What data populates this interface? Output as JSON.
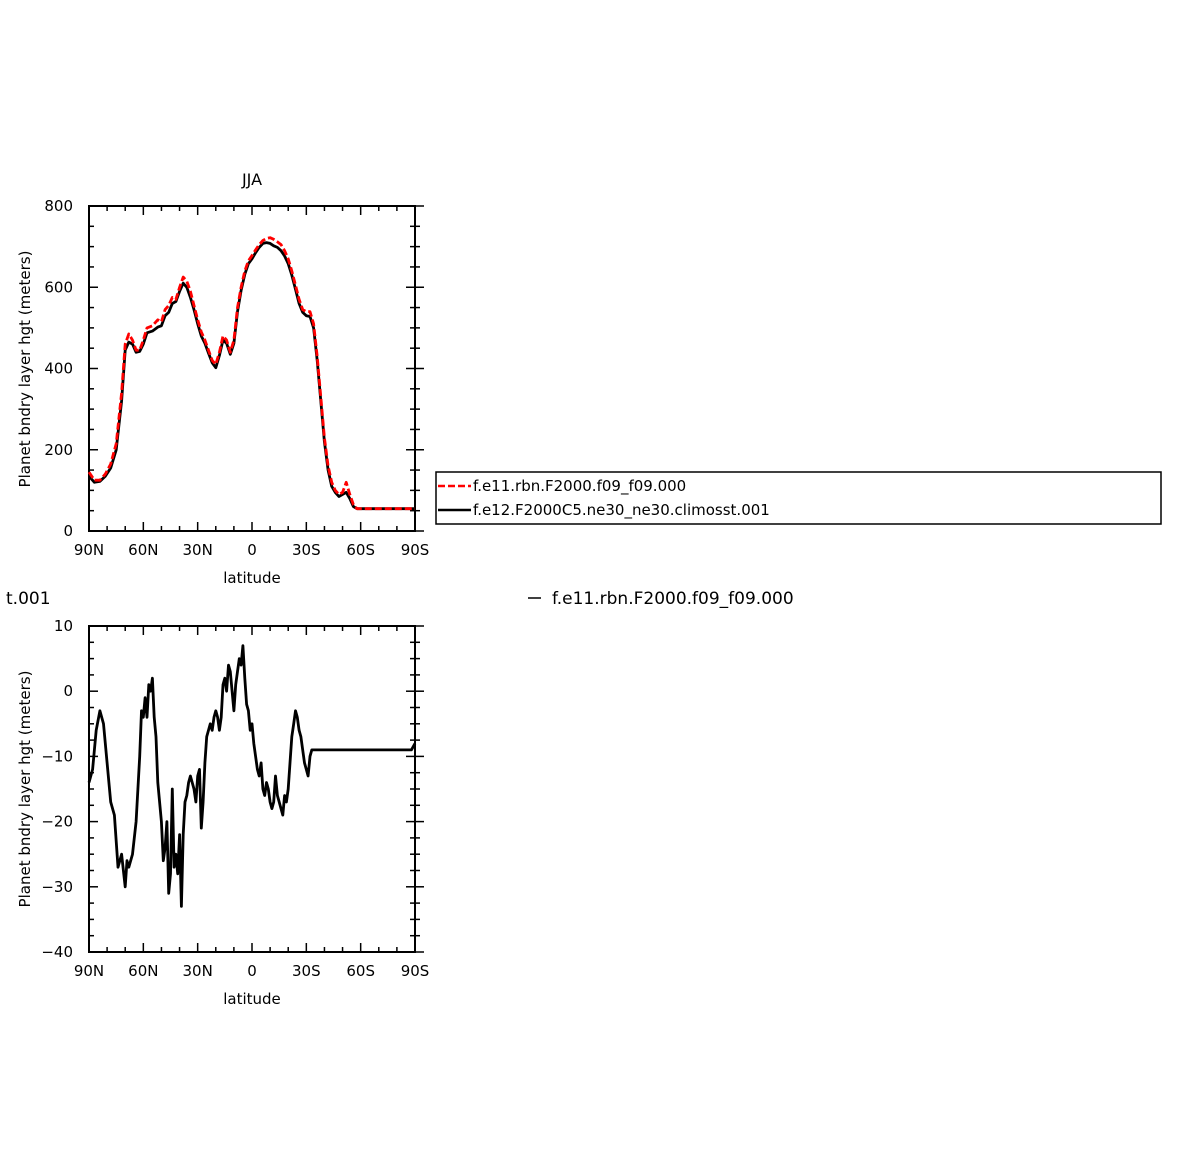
{
  "chart_data": [
    {
      "type": "line",
      "title": "JJA",
      "xlabel": "latitude",
      "ylabel": "Planet bndry layer hgt (meters)",
      "xlim": [
        -90,
        90
      ],
      "ylim": [
        0,
        800
      ],
      "x_ticks": [
        -90,
        -60,
        -30,
        0,
        30,
        60,
        90
      ],
      "x_tick_labels": [
        "90N",
        "60N",
        "30N",
        "0",
        "30S",
        "60S",
        "90S"
      ],
      "y_ticks": [
        0,
        200,
        400,
        600,
        800
      ],
      "y_tick_labels": [
        "0",
        "200",
        "400",
        "600",
        "800"
      ],
      "grid": false,
      "legend_position": "right, outside plot",
      "series": [
        {
          "name": "f.e11.rbn.F2000.f09_f09.000",
          "color": "#ff0000",
          "dash": "dashed",
          "x": [
            -90,
            -87,
            -84,
            -81,
            -78,
            -75,
            -72,
            -70,
            -68,
            -66,
            -64,
            -62,
            -60,
            -58,
            -55,
            -52,
            -50,
            -48,
            -46,
            -44,
            -42,
            -40,
            -38,
            -36,
            -34,
            -32,
            -30,
            -28,
            -26,
            -24,
            -22,
            -20,
            -18,
            -16,
            -14,
            -12,
            -10,
            -8,
            -6,
            -4,
            -2,
            0,
            2,
            4,
            6,
            8,
            10,
            12,
            14,
            16,
            18,
            20,
            22,
            24,
            26,
            28,
            30,
            32,
            34,
            36,
            38,
            40,
            42,
            44,
            46,
            48,
            50,
            52,
            54,
            56,
            58,
            60,
            62,
            64,
            66,
            68,
            70,
            72,
            74,
            76,
            78,
            80,
            82,
            84,
            86,
            88,
            90
          ],
          "y": [
            145,
            125,
            125,
            140,
            165,
            215,
            340,
            460,
            485,
            470,
            445,
            445,
            470,
            500,
            505,
            520,
            515,
            545,
            555,
            575,
            570,
            600,
            625,
            615,
            590,
            555,
            520,
            490,
            470,
            445,
            420,
            410,
            440,
            480,
            470,
            440,
            470,
            550,
            600,
            640,
            665,
            678,
            692,
            705,
            715,
            720,
            722,
            718,
            712,
            705,
            690,
            670,
            640,
            605,
            570,
            545,
            540,
            540,
            510,
            430,
            330,
            230,
            160,
            120,
            100,
            90,
            95,
            120,
            90,
            65,
            55,
            55,
            55,
            55,
            55,
            55,
            55,
            55,
            55,
            55,
            55,
            55,
            55,
            55,
            55,
            55,
            55
          ]
        },
        {
          "name": "f.e12.F2000C5.ne30_ne30.climosst.001",
          "color": "#000000",
          "dash": "solid",
          "x": [
            -90,
            -87,
            -84,
            -81,
            -78,
            -75,
            -72,
            -70,
            -68,
            -66,
            -64,
            -62,
            -60,
            -58,
            -55,
            -52,
            -50,
            -48,
            -46,
            -44,
            -42,
            -40,
            -38,
            -36,
            -34,
            -32,
            -30,
            -28,
            -26,
            -24,
            -22,
            -20,
            -18,
            -16,
            -14,
            -12,
            -10,
            -8,
            -6,
            -4,
            -2,
            0,
            2,
            4,
            6,
            8,
            10,
            12,
            14,
            16,
            18,
            20,
            22,
            24,
            26,
            28,
            30,
            32,
            34,
            36,
            38,
            40,
            42,
            44,
            46,
            48,
            50,
            52,
            54,
            56,
            58,
            60,
            62,
            64,
            66,
            68,
            70,
            72,
            74,
            76,
            78,
            80,
            82,
            84,
            86,
            88,
            90
          ],
          "y": [
            135,
            120,
            122,
            135,
            155,
            200,
            320,
            445,
            465,
            460,
            440,
            442,
            460,
            488,
            492,
            502,
            505,
            530,
            538,
            560,
            565,
            590,
            610,
            600,
            575,
            545,
            510,
            480,
            462,
            438,
            414,
            402,
            432,
            470,
            462,
            435,
            462,
            540,
            592,
            632,
            658,
            670,
            685,
            698,
            708,
            710,
            708,
            702,
            698,
            690,
            677,
            658,
            630,
            595,
            560,
            538,
            530,
            528,
            500,
            420,
            320,
            220,
            150,
            110,
            95,
            85,
            90,
            95,
            80,
            60,
            55,
            55,
            55,
            55,
            55,
            55,
            55,
            55,
            55,
            55,
            55,
            55,
            55,
            55,
            55,
            55,
            55
          ]
        }
      ]
    },
    {
      "type": "line",
      "title": "t.001",
      "xlabel": "latitude",
      "ylabel": "Planet bndry layer hgt (meters)",
      "xlim": [
        -90,
        90
      ],
      "ylim": [
        -40,
        10
      ],
      "x_ticks": [
        -90,
        -60,
        -30,
        0,
        30,
        60,
        90
      ],
      "x_tick_labels": [
        "90N",
        "60N",
        "30N",
        "0",
        "30S",
        "60S",
        "90S"
      ],
      "y_ticks": [
        -40,
        -30,
        -20,
        -10,
        0,
        10
      ],
      "y_tick_labels": [
        "−40",
        "−30",
        "−20",
        "−10",
        "0",
        "10"
      ],
      "grid": false,
      "series": [
        {
          "name": "f.e11.rbn.F2000.f09_f09.000",
          "color": "#000000",
          "dash": "solid",
          "x": [
            -90,
            -88,
            -86,
            -84,
            -82,
            -80,
            -78,
            -76,
            -74,
            -72,
            -70,
            -69,
            -68,
            -66,
            -64,
            -62,
            -61,
            -60,
            -59,
            -58,
            -57,
            -56,
            -55,
            -54,
            -53,
            -52,
            -51,
            -50,
            -49,
            -48,
            -47,
            -46,
            -45,
            -44,
            -43,
            -42,
            -41,
            -40,
            -39,
            -38,
            -37,
            -36,
            -35,
            -34,
            -33,
            -32,
            -31,
            -30,
            -29,
            -28,
            -27,
            -26,
            -25,
            -24,
            -23,
            -22,
            -21,
            -20,
            -19,
            -18,
            -17,
            -16,
            -15,
            -14,
            -13,
            -12,
            -11,
            -10,
            -9,
            -8,
            -7,
            -6,
            -5,
            -4,
            -3,
            -2,
            -1,
            0,
            1,
            2,
            3,
            4,
            5,
            6,
            7,
            8,
            9,
            10,
            11,
            12,
            13,
            14,
            15,
            16,
            17,
            18,
            19,
            20,
            21,
            22,
            23,
            24,
            25,
            26,
            27,
            28,
            29,
            30,
            31,
            32,
            33,
            34,
            36,
            38,
            40,
            42,
            44,
            46,
            48,
            50,
            52,
            54,
            56,
            58,
            60,
            62,
            64,
            66,
            68,
            70,
            72,
            74,
            76,
            78,
            80,
            82,
            84,
            86,
            88,
            90
          ],
          "y": [
            -14,
            -12,
            -6,
            -3,
            -5,
            -11,
            -17,
            -19,
            -27,
            -25,
            -30,
            -26,
            -27,
            -25,
            -20,
            -10,
            -3,
            -4,
            -1,
            -4,
            1,
            0,
            2,
            -4,
            -7,
            -14,
            -17,
            -20,
            -26,
            -24,
            -20,
            -31,
            -28,
            -15,
            -27,
            -25,
            -28,
            -22,
            -33,
            -22,
            -17,
            -16,
            -14,
            -13,
            -14,
            -15,
            -17,
            -13,
            -12,
            -21,
            -17,
            -11,
            -7,
            -6,
            -5,
            -6,
            -4,
            -3,
            -4,
            -6,
            -4,
            1,
            2,
            0,
            4,
            3,
            0,
            -3,
            1,
            3,
            5,
            4,
            7,
            2,
            -2,
            -3,
            -6,
            -5,
            -8,
            -10,
            -12,
            -13,
            -11,
            -15,
            -16,
            -14,
            -15,
            -17,
            -18,
            -17,
            -13,
            -16,
            -17,
            -18,
            -19,
            -16,
            -17,
            -15,
            -11,
            -7,
            -5,
            -3,
            -4,
            -6,
            -7,
            -9,
            -11,
            -12,
            -13,
            -10,
            -9,
            -9,
            -9,
            -9,
            -9,
            -9,
            -9,
            -9,
            -9,
            -9,
            -9,
            -9,
            -9,
            -9,
            -9,
            -9,
            -9,
            -9,
            -9,
            -9,
            -9,
            -9,
            -9,
            -9,
            -9,
            -9,
            -9,
            -9,
            -9,
            -8
          ],
          "_note": ""
        }
      ]
    }
  ],
  "legend": {
    "items": [
      {
        "label": "f.e11.rbn.F2000.f09_f09.000",
        "color": "#ff0000",
        "dash": "dashed"
      },
      {
        "label": "f.e12.F2000C5.ne30_ne30.climosst.001",
        "color": "#000000",
        "dash": "solid"
      }
    ]
  },
  "bottom_legend_label": "f.e11.rbn.F2000.f09_f09.000"
}
